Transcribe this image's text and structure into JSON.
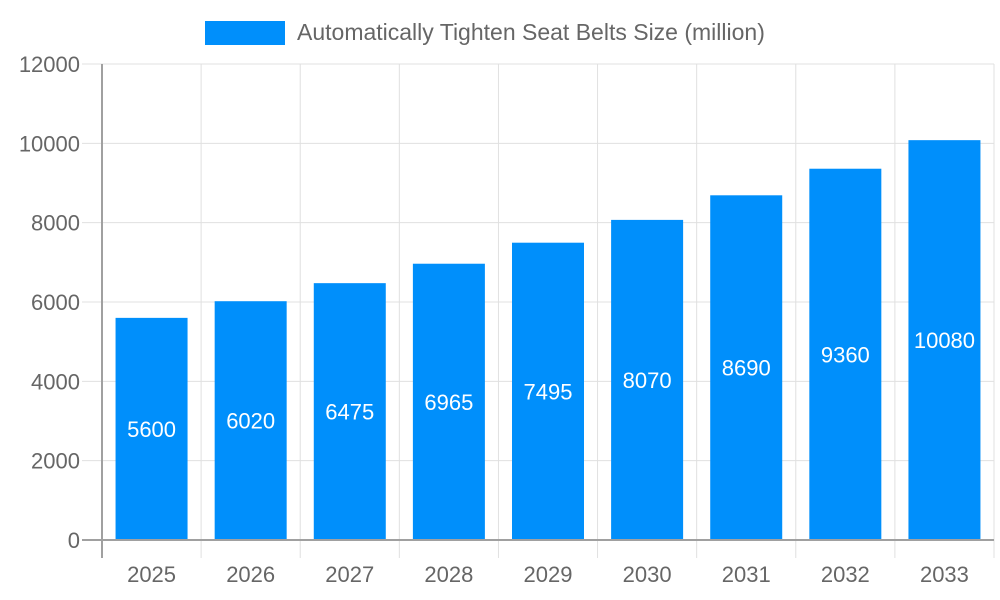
{
  "chart_data": {
    "type": "bar",
    "categories": [
      "2025",
      "2026",
      "2027",
      "2028",
      "2029",
      "2030",
      "2031",
      "2032",
      "2033"
    ],
    "series": [
      {
        "name": "Automatically Tighten Seat Belts Size (million)",
        "values": [
          5600,
          6020,
          6475,
          6965,
          7495,
          8070,
          8690,
          9360,
          10080
        ],
        "color": "#008FFB"
      }
    ],
    "yticks": [
      "0",
      "2000",
      "4000",
      "6000",
      "8000",
      "10000",
      "12000"
    ],
    "ylim": [
      0,
      12000
    ],
    "grid": true,
    "legend": "top",
    "data_labels": true
  }
}
